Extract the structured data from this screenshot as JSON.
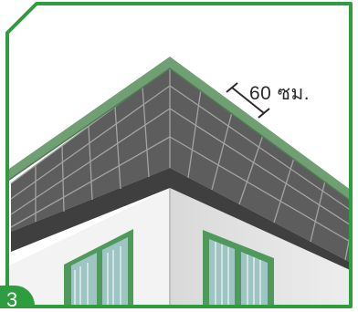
{
  "illustration": {
    "dimension_label": "60 ซม.",
    "step_number": "3",
    "frame_color": "#2e9d3f",
    "soffit_color": "#5d5d5d",
    "fascia_color": "#6f9f72",
    "wall_color": "#f3f3f3",
    "window_frame_color": "#4f9a5a",
    "glass_color": "#9ec5c4"
  }
}
